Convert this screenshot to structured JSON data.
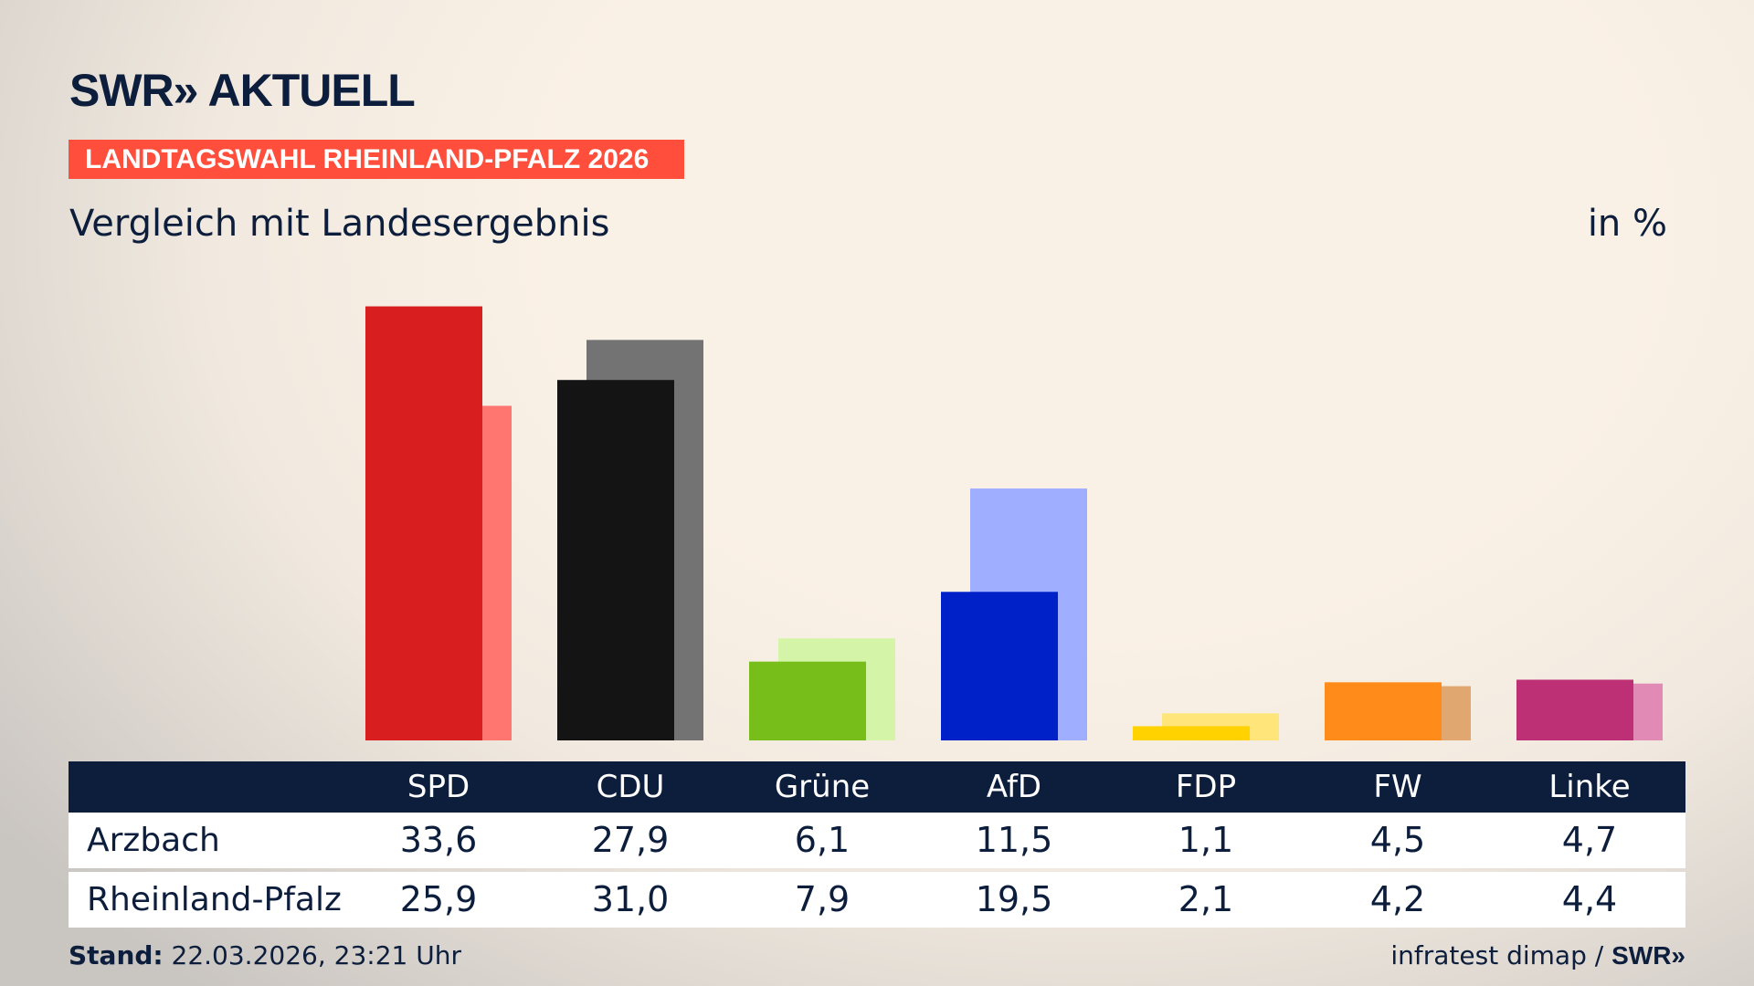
{
  "header": {
    "logo": "SWR» AKTUELL",
    "banner": "LANDTAGSWAHL RHEINLAND-PFALZ 2026",
    "subtitle": "Vergleich mit Landesergebnis",
    "unit": "in %"
  },
  "chart_data": {
    "type": "bar",
    "categories": [
      "SPD",
      "CDU",
      "Grüne",
      "AfD",
      "FDP",
      "FW",
      "Linke"
    ],
    "series": [
      {
        "name": "Arzbach",
        "values": [
          33.6,
          27.9,
          6.1,
          11.5,
          1.1,
          4.5,
          4.7
        ],
        "colors": [
          "#d81e1e",
          "#141414",
          "#78be1a",
          "#0021c8",
          "#ffd200",
          "#ff8c1a",
          "#be3075"
        ]
      },
      {
        "name": "Rheinland-Pfalz",
        "values": [
          25.9,
          31.0,
          7.9,
          19.5,
          2.1,
          4.2,
          4.4
        ],
        "colors": [
          "#ff7570",
          "#737373",
          "#d4f5a8",
          "#a0aeff",
          "#ffe57a",
          "#e0a870",
          "#e08ab5"
        ]
      }
    ],
    "ylim": [
      0,
      35
    ],
    "grid": false
  },
  "table": {
    "columns": [
      "SPD",
      "CDU",
      "Grüne",
      "AfD",
      "FDP",
      "FW",
      "Linke"
    ],
    "rows": [
      {
        "label": "Arzbach",
        "values": [
          "33,6",
          "27,9",
          "6,1",
          "11,5",
          "1,1",
          "4,5",
          "4,7"
        ]
      },
      {
        "label": "Rheinland-Pfalz",
        "values": [
          "25,9",
          "31,0",
          "7,9",
          "19,5",
          "2,1",
          "4,2",
          "4,4"
        ]
      }
    ]
  },
  "footer": {
    "stand_label": "Stand:",
    "stand_value": " 22.03.2026, 23:21 Uhr",
    "source": "infratest dimap / ",
    "source_logo": "SWR»"
  }
}
